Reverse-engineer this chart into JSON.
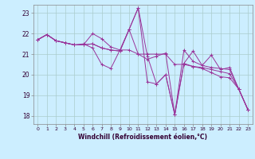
{
  "xlabel": "Windchill (Refroidissement éolien,°C)",
  "background_color": "#cceeff",
  "grid_color": "#aacccc",
  "line_color": "#993399",
  "ylim": [
    17.6,
    23.4
  ],
  "xlim": [
    -0.5,
    23.5
  ],
  "yticks": [
    18,
    19,
    20,
    21,
    22,
    23
  ],
  "xticks": [
    0,
    1,
    2,
    3,
    4,
    5,
    6,
    7,
    8,
    9,
    10,
    11,
    12,
    13,
    14,
    15,
    16,
    17,
    18,
    19,
    20,
    21,
    22,
    23
  ],
  "series": [
    [
      21.7,
      21.95,
      21.65,
      21.55,
      21.45,
      21.45,
      21.5,
      21.3,
      21.2,
      21.15,
      22.2,
      23.25,
      20.9,
      19.55,
      20.0,
      18.05,
      20.55,
      20.4,
      20.3,
      20.1,
      19.9,
      19.85,
      19.3,
      18.3
    ],
    [
      21.7,
      21.95,
      21.65,
      21.55,
      21.45,
      21.45,
      22.0,
      21.75,
      21.35,
      21.2,
      21.2,
      21.0,
      21.0,
      21.0,
      21.0,
      20.5,
      20.5,
      20.4,
      20.35,
      20.25,
      20.15,
      20.05,
      19.3,
      18.3
    ],
    [
      21.7,
      21.95,
      21.65,
      21.55,
      21.45,
      21.5,
      21.3,
      20.5,
      20.3,
      21.2,
      22.2,
      23.25,
      19.65,
      19.55,
      20.0,
      18.05,
      21.2,
      20.65,
      20.45,
      20.95,
      20.25,
      20.35,
      19.3,
      18.3
    ],
    [
      21.7,
      21.95,
      21.65,
      21.55,
      21.45,
      21.45,
      21.5,
      21.3,
      21.2,
      21.15,
      22.2,
      21.0,
      20.75,
      20.9,
      21.05,
      18.05,
      20.55,
      21.15,
      20.45,
      20.35,
      20.3,
      20.25,
      19.3,
      18.3
    ]
  ]
}
